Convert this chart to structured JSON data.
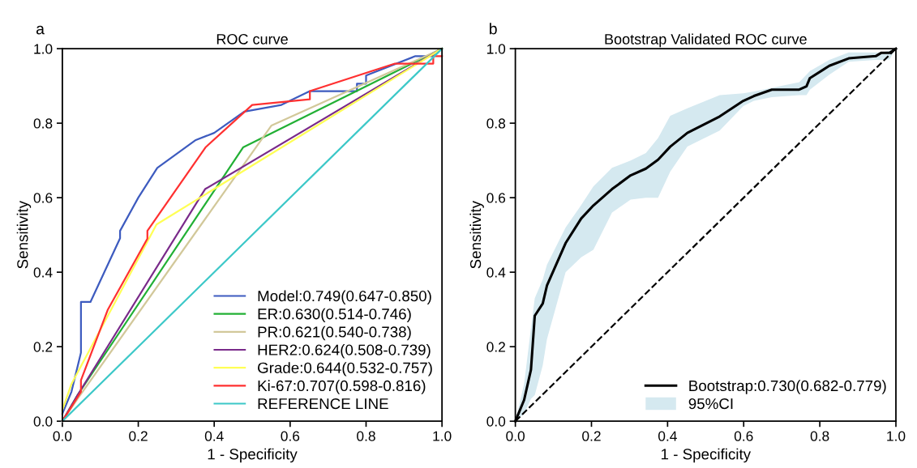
{
  "chart_data": [
    {
      "type": "line",
      "title": "ROC curve",
      "xlabel": "1 - Specificity",
      "ylabel": "Sensitivity",
      "annotations": [
        "a"
      ],
      "xlim": [
        0,
        1
      ],
      "ylim": [
        0,
        1
      ],
      "xticks": [
        {
          "value": 0,
          "label": "0.0"
        },
        {
          "value": 0.2,
          "label": "0.2"
        },
        {
          "value": 0.4,
          "label": "0.4"
        },
        {
          "value": 0.6,
          "label": "0.6"
        },
        {
          "value": 0.8,
          "label": "0.8"
        },
        {
          "value": 1,
          "label": "1.0"
        }
      ],
      "yticks": [
        {
          "value": 0,
          "label": "0.0"
        },
        {
          "value": 0.2,
          "label": "0.2"
        },
        {
          "value": 0.4,
          "label": "0.4"
        },
        {
          "value": 0.6,
          "label": "0.6"
        },
        {
          "value": 0.8,
          "label": "0.8"
        },
        {
          "value": 1,
          "label": "1.0"
        }
      ],
      "grid": false,
      "legend": "bottom right",
      "marker": "none",
      "series": [
        {
          "name": "Model:0.749(0.647-0.850)",
          "color": "#3d5bbf",
          "x": [
            0,
            0.024,
            0.049,
            0.049,
            0.074,
            0.152,
            0.152,
            0.2,
            0.25,
            0.35,
            0.4,
            0.479,
            0.577,
            0.652,
            0.776,
            0.776,
            0.8,
            0.8,
            0.93,
            0.974,
            1.0
          ],
          "values": [
            0.02,
            0.079,
            0.184,
            0.32,
            0.32,
            0.491,
            0.511,
            0.6,
            0.68,
            0.754,
            0.774,
            0.831,
            0.849,
            0.886,
            0.886,
            0.906,
            0.906,
            0.928,
            0.98,
            0.98,
            1.0
          ]
        },
        {
          "name": "ER:0.630(0.514-0.746)",
          "color": "#22b035",
          "x": [
            0,
            0.04,
            0.476,
            1.0
          ],
          "values": [
            0,
            0.07,
            0.735,
            1.0
          ]
        },
        {
          "name": "PR:0.621(0.540-0.738)",
          "color": "#d2c89a",
          "x": [
            0,
            0.04,
            0.551,
            1.0
          ],
          "values": [
            0,
            0.06,
            0.794,
            1.0
          ]
        },
        {
          "name": "HER2:0.624(0.508-0.739)",
          "color": "#7a2a8a",
          "x": [
            0,
            0.04,
            0.376,
            1.0
          ],
          "values": [
            0,
            0.07,
            0.623,
            1.0
          ]
        },
        {
          "name": "Grade:0.644(0.532-0.757)",
          "color": "#ffff55",
          "x": [
            0,
            0.024,
            0.248,
            1.0
          ],
          "values": [
            0.03,
            0.1,
            0.528,
            1.0
          ]
        },
        {
          "name": "Ki-67:0.707(0.598-0.816)",
          "color": "#ff3030",
          "x": [
            0,
            0.049,
            0.049,
            0.12,
            0.224,
            0.224,
            0.377,
            0.5,
            0.652,
            0.652,
            0.876,
            0.977,
            0.977,
            1.0
          ],
          "values": [
            0,
            0.079,
            0.11,
            0.3,
            0.49,
            0.511,
            0.735,
            0.849,
            0.864,
            0.886,
            0.96,
            0.96,
            0.98,
            0.98
          ]
        },
        {
          "name": "REFERENCE LINE",
          "color": "#3cc8c8",
          "x": [
            0,
            1
          ],
          "values": [
            0,
            1
          ]
        }
      ]
    },
    {
      "type": "line",
      "title": "Bootstrap Validated ROC curve",
      "xlabel": "1 - Specificity",
      "ylabel": "Sensitivity",
      "annotations": [
        "b",
        "95%CI"
      ],
      "xlim": [
        0,
        1
      ],
      "ylim": [
        0,
        1
      ],
      "xticks": [
        {
          "value": 0,
          "label": "0.0"
        },
        {
          "value": 0.2,
          "label": "0.2"
        },
        {
          "value": 0.4,
          "label": "0.4"
        },
        {
          "value": 0.6,
          "label": "0.6"
        },
        {
          "value": 0.8,
          "label": "0.8"
        },
        {
          "value": 1,
          "label": "1.0"
        }
      ],
      "yticks": [
        {
          "value": 0,
          "label": "0.0"
        },
        {
          "value": 0.2,
          "label": "0.2"
        },
        {
          "value": 0.4,
          "label": "0.4"
        },
        {
          "value": 0.6,
          "label": "0.6"
        },
        {
          "value": 0.8,
          "label": "0.8"
        },
        {
          "value": 1,
          "label": "1.0"
        }
      ],
      "grid": false,
      "legend": "bottom right",
      "marker": "none",
      "series": [
        {
          "name": "Bootstrap:0.730(0.682-0.779)",
          "color": "#000000",
          "x": [
            0,
            0.023,
            0.041,
            0.051,
            0.072,
            0.083,
            0.132,
            0.173,
            0.205,
            0.254,
            0.303,
            0.343,
            0.375,
            0.407,
            0.452,
            0.537,
            0.599,
            0.627,
            0.674,
            0.746,
            0.765,
            0.774,
            0.825,
            0.876,
            0.947,
            0.962,
            0.983,
            1.0
          ],
          "values": [
            0,
            0.057,
            0.138,
            0.283,
            0.316,
            0.364,
            0.478,
            0.544,
            0.579,
            0.623,
            0.66,
            0.678,
            0.702,
            0.737,
            0.774,
            0.818,
            0.86,
            0.873,
            0.89,
            0.89,
            0.899,
            0.921,
            0.954,
            0.974,
            0.98,
            0.989,
            0.989,
            1.0
          ],
          "lower": [
            0,
            0.02,
            0.06,
            0.07,
            0.15,
            0.22,
            0.4,
            0.44,
            0.46,
            0.56,
            0.595,
            0.6,
            0.6,
            0.67,
            0.737,
            0.78,
            0.846,
            0.86,
            0.87,
            0.875,
            0.875,
            0.89,
            0.93,
            0.965,
            0.97,
            0.97,
            0.971,
            1.0
          ],
          "upper": [
            0,
            0.1,
            0.25,
            0.33,
            0.38,
            0.42,
            0.52,
            0.58,
            0.63,
            0.68,
            0.7,
            0.72,
            0.76,
            0.82,
            0.84,
            0.875,
            0.88,
            0.885,
            0.895,
            0.91,
            0.93,
            0.94,
            0.97,
            0.99,
            0.99,
            0.99,
            0.995,
            1.0
          ]
        },
        {
          "color": "#000000",
          "line_style": "dashed",
          "x": [
            0,
            1
          ],
          "values": [
            0,
            1
          ]
        }
      ]
    }
  ]
}
